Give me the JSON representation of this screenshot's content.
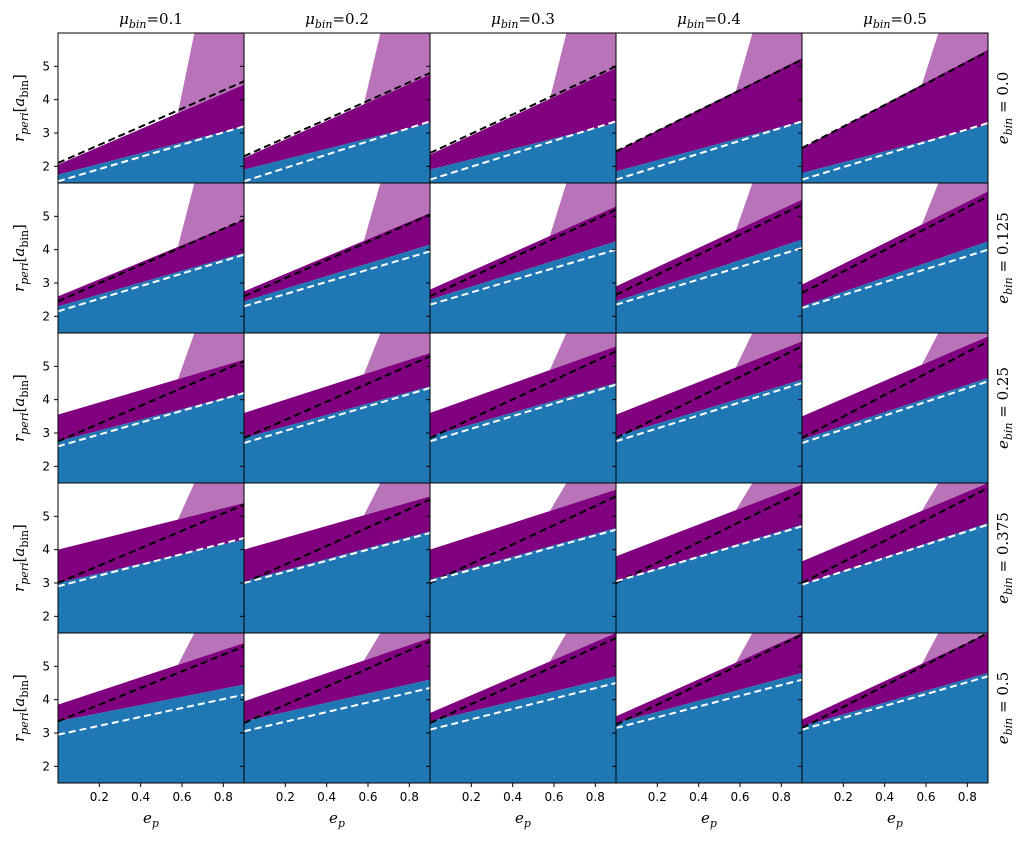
{
  "chart_data": {
    "type": "heatmap",
    "grid_shape": [
      5,
      5
    ],
    "column_labels": [
      {
        "base": "μ",
        "sub": "bin",
        "eq": "=0.1"
      },
      {
        "base": "μ",
        "sub": "bin",
        "eq": "=0.2"
      },
      {
        "base": "μ",
        "sub": "bin",
        "eq": "=0.3"
      },
      {
        "base": "μ",
        "sub": "bin",
        "eq": "=0.4"
      },
      {
        "base": "μ",
        "sub": "bin",
        "eq": "=0.5"
      }
    ],
    "row_labels": [
      {
        "base": "e",
        "sub": "bin",
        "eq": " = 0.0"
      },
      {
        "base": "e",
        "sub": "bin",
        "eq": " = 0.125"
      },
      {
        "base": "e",
        "sub": "bin",
        "eq": " = 0.25"
      },
      {
        "base": "e",
        "sub": "bin",
        "eq": " = 0.375"
      },
      {
        "base": "e",
        "sub": "bin",
        "eq": " = 0.5"
      }
    ],
    "xlabel": {
      "base": "e",
      "sub": "p"
    },
    "ylabel": {
      "base": "r",
      "sub": "peri",
      "bracket_base": "a",
      "bracket_sub": "bin"
    },
    "x_ticks": [
      "0.2",
      "0.4",
      "0.6",
      "0.8"
    ],
    "x_tick_values": [
      0.2,
      0.4,
      0.6,
      0.8
    ],
    "y_ticks": [
      "2",
      "3",
      "4",
      "5"
    ],
    "y_tick_values": [
      2,
      3,
      4,
      5
    ],
    "xlim": [
      0.0,
      0.9
    ],
    "ylim": [
      1.5,
      6.0
    ],
    "colors": {
      "unstable": "#1f77b4",
      "mixed": "#800080",
      "background": "#ffffff",
      "fit_line_1": "#000000",
      "fit_line_2": "#ffffff"
    },
    "panels": [
      [
        {
          "stable_boundary": [
            [
              0.0,
              1.75
            ],
            [
              0.9,
              3.2
            ]
          ],
          "purple_upper": [
            [
              0.0,
              2.05
            ],
            [
              0.9,
              4.45
            ]
          ],
          "black_line": [
            [
              0.0,
              2.1
            ],
            [
              0.9,
              4.55
            ]
          ],
          "white_line": [
            [
              0.0,
              1.55
            ],
            [
              0.9,
              3.2
            ]
          ]
        },
        {
          "stable_boundary": [
            [
              0.0,
              1.9
            ],
            [
              0.9,
              3.3
            ]
          ],
          "purple_upper": [
            [
              0.0,
              2.25
            ],
            [
              0.9,
              4.75
            ]
          ],
          "black_line": [
            [
              0.0,
              2.3
            ],
            [
              0.9,
              4.8
            ]
          ],
          "white_line": [
            [
              0.0,
              1.55
            ],
            [
              0.9,
              3.35
            ]
          ]
        },
        {
          "stable_boundary": [
            [
              0.0,
              1.9
            ],
            [
              0.9,
              3.3
            ]
          ],
          "purple_upper": [
            [
              0.0,
              2.35
            ],
            [
              0.9,
              4.95
            ]
          ],
          "black_line": [
            [
              0.0,
              2.4
            ],
            [
              0.9,
              5.0
            ]
          ],
          "white_line": [
            [
              0.0,
              1.6
            ],
            [
              0.9,
              3.35
            ]
          ]
        },
        {
          "stable_boundary": [
            [
              0.0,
              1.85
            ],
            [
              0.9,
              3.35
            ]
          ],
          "purple_upper": [
            [
              0.0,
              2.45
            ],
            [
              0.9,
              5.25
            ]
          ],
          "black_line": [
            [
              0.0,
              2.45
            ],
            [
              0.9,
              5.2
            ]
          ],
          "white_line": [
            [
              0.0,
              1.6
            ],
            [
              0.9,
              3.35
            ]
          ]
        },
        {
          "stable_boundary": [
            [
              0.0,
              1.8
            ],
            [
              0.9,
              3.25
            ]
          ],
          "purple_upper": [
            [
              0.0,
              2.55
            ],
            [
              0.9,
              5.5
            ]
          ],
          "black_line": [
            [
              0.0,
              2.55
            ],
            [
              0.9,
              5.45
            ]
          ],
          "white_line": [
            [
              0.0,
              1.6
            ],
            [
              0.9,
              3.3
            ]
          ]
        }
      ],
      [
        {
          "stable_boundary": [
            [
              0.0,
              2.3
            ],
            [
              0.9,
              3.9
            ]
          ],
          "purple_upper": [
            [
              0.0,
              2.6
            ],
            [
              0.9,
              4.9
            ]
          ],
          "black_line": [
            [
              0.0,
              2.45
            ],
            [
              0.9,
              4.9
            ]
          ],
          "white_line": [
            [
              0.0,
              2.15
            ],
            [
              0.9,
              3.85
            ]
          ]
        },
        {
          "stable_boundary": [
            [
              0.0,
              2.45
            ],
            [
              0.9,
              4.15
            ]
          ],
          "purple_upper": [
            [
              0.0,
              2.75
            ],
            [
              0.9,
              5.1
            ]
          ],
          "black_line": [
            [
              0.0,
              2.6
            ],
            [
              0.9,
              5.05
            ]
          ],
          "white_line": [
            [
              0.0,
              2.3
            ],
            [
              0.9,
              3.95
            ]
          ]
        },
        {
          "stable_boundary": [
            [
              0.0,
              2.5
            ],
            [
              0.9,
              4.25
            ]
          ],
          "purple_upper": [
            [
              0.0,
              2.8
            ],
            [
              0.9,
              5.3
            ]
          ],
          "black_line": [
            [
              0.0,
              2.6
            ],
            [
              0.9,
              5.2
            ]
          ],
          "white_line": [
            [
              0.0,
              2.35
            ],
            [
              0.9,
              4.0
            ]
          ]
        },
        {
          "stable_boundary": [
            [
              0.0,
              2.45
            ],
            [
              0.9,
              4.3
            ]
          ],
          "purple_upper": [
            [
              0.0,
              2.9
            ],
            [
              0.9,
              5.5
            ]
          ],
          "black_line": [
            [
              0.0,
              2.65
            ],
            [
              0.9,
              5.35
            ]
          ],
          "white_line": [
            [
              0.0,
              2.35
            ],
            [
              0.9,
              4.05
            ]
          ]
        },
        {
          "stable_boundary": [
            [
              0.0,
              2.3
            ],
            [
              0.9,
              4.25
            ]
          ],
          "purple_upper": [
            [
              0.0,
              2.95
            ],
            [
              0.9,
              5.75
            ]
          ],
          "black_line": [
            [
              0.0,
              2.7
            ],
            [
              0.9,
              5.6
            ]
          ],
          "white_line": [
            [
              0.0,
              2.25
            ],
            [
              0.9,
              4.0
            ]
          ]
        }
      ],
      [
        {
          "stable_boundary": [
            [
              0.0,
              2.75
            ],
            [
              0.9,
              4.2
            ]
          ],
          "purple_upper": [
            [
              0.0,
              3.55
            ],
            [
              0.9,
              5.2
            ]
          ],
          "black_line": [
            [
              0.0,
              2.75
            ],
            [
              0.9,
              5.15
            ]
          ],
          "white_line": [
            [
              0.0,
              2.6
            ],
            [
              0.9,
              4.2
            ]
          ]
        },
        {
          "stable_boundary": [
            [
              0.0,
              2.85
            ],
            [
              0.9,
              4.4
            ]
          ],
          "purple_upper": [
            [
              0.0,
              3.6
            ],
            [
              0.9,
              5.4
            ]
          ],
          "black_line": [
            [
              0.0,
              2.85
            ],
            [
              0.9,
              5.3
            ]
          ],
          "white_line": [
            [
              0.0,
              2.7
            ],
            [
              0.9,
              4.35
            ]
          ]
        },
        {
          "stable_boundary": [
            [
              0.0,
              2.9
            ],
            [
              0.9,
              4.5
            ]
          ],
          "purple_upper": [
            [
              0.0,
              3.6
            ],
            [
              0.9,
              5.6
            ]
          ],
          "black_line": [
            [
              0.0,
              2.85
            ],
            [
              0.9,
              5.45
            ]
          ],
          "white_line": [
            [
              0.0,
              2.75
            ],
            [
              0.9,
              4.45
            ]
          ]
        },
        {
          "stable_boundary": [
            [
              0.0,
              2.9
            ],
            [
              0.9,
              4.6
            ]
          ],
          "purple_upper": [
            [
              0.0,
              3.55
            ],
            [
              0.9,
              5.75
            ]
          ],
          "black_line": [
            [
              0.0,
              2.85
            ],
            [
              0.9,
              5.6
            ]
          ],
          "white_line": [
            [
              0.0,
              2.75
            ],
            [
              0.9,
              4.5
            ]
          ]
        },
        {
          "stable_boundary": [
            [
              0.0,
              2.8
            ],
            [
              0.9,
              4.65
            ]
          ],
          "purple_upper": [
            [
              0.0,
              3.5
            ],
            [
              0.9,
              5.9
            ]
          ],
          "black_line": [
            [
              0.0,
              2.85
            ],
            [
              0.9,
              5.75
            ]
          ],
          "white_line": [
            [
              0.0,
              2.7
            ],
            [
              0.9,
              4.55
            ]
          ]
        }
      ],
      [
        {
          "stable_boundary": [
            [
              0.0,
              3.0
            ],
            [
              0.9,
              4.3
            ]
          ],
          "purple_upper": [
            [
              0.0,
              4.0
            ],
            [
              0.9,
              5.4
            ]
          ],
          "black_line": [
            [
              0.0,
              3.0
            ],
            [
              0.9,
              5.35
            ]
          ],
          "white_line": [
            [
              0.0,
              2.9
            ],
            [
              0.9,
              4.35
            ]
          ]
        },
        {
          "stable_boundary": [
            [
              0.0,
              3.05
            ],
            [
              0.9,
              4.55
            ]
          ],
          "purple_upper": [
            [
              0.0,
              4.0
            ],
            [
              0.9,
              5.6
            ]
          ],
          "black_line": [
            [
              0.0,
              3.0
            ],
            [
              0.9,
              5.5
            ]
          ],
          "white_line": [
            [
              0.0,
              3.0
            ],
            [
              0.9,
              4.5
            ]
          ]
        },
        {
          "stable_boundary": [
            [
              0.0,
              3.1
            ],
            [
              0.9,
              4.65
            ]
          ],
          "purple_upper": [
            [
              0.0,
              4.0
            ],
            [
              0.9,
              5.8
            ]
          ],
          "black_line": [
            [
              0.0,
              3.0
            ],
            [
              0.9,
              5.6
            ]
          ],
          "white_line": [
            [
              0.0,
              3.05
            ],
            [
              0.9,
              4.6
            ]
          ]
        },
        {
          "stable_boundary": [
            [
              0.0,
              3.05
            ],
            [
              0.9,
              4.75
            ]
          ],
          "purple_upper": [
            [
              0.0,
              3.8
            ],
            [
              0.9,
              5.95
            ]
          ],
          "black_line": [
            [
              0.0,
              3.0
            ],
            [
              0.9,
              5.75
            ]
          ],
          "white_line": [
            [
              0.0,
              3.05
            ],
            [
              0.9,
              4.7
            ]
          ]
        },
        {
          "stable_boundary": [
            [
              0.0,
              2.95
            ],
            [
              0.9,
              4.8
            ]
          ],
          "purple_upper": [
            [
              0.0,
              3.65
            ],
            [
              0.9,
              6.0
            ]
          ],
          "black_line": [
            [
              0.0,
              3.0
            ],
            [
              0.9,
              5.85
            ]
          ],
          "white_line": [
            [
              0.0,
              2.95
            ],
            [
              0.9,
              4.75
            ]
          ]
        }
      ],
      [
        {
          "stable_boundary": [
            [
              0.0,
              3.35
            ],
            [
              0.9,
              4.45
            ]
          ],
          "purple_upper": [
            [
              0.0,
              3.85
            ],
            [
              0.9,
              5.7
            ]
          ],
          "black_line": [
            [
              0.0,
              3.35
            ],
            [
              0.9,
              5.6
            ]
          ],
          "white_line": [
            [
              0.0,
              2.95
            ],
            [
              0.9,
              4.15
            ]
          ]
        },
        {
          "stable_boundary": [
            [
              0.0,
              3.35
            ],
            [
              0.9,
              4.6
            ]
          ],
          "purple_upper": [
            [
              0.0,
              3.95
            ],
            [
              0.9,
              5.85
            ]
          ],
          "black_line": [
            [
              0.0,
              3.3
            ],
            [
              0.9,
              5.75
            ]
          ],
          "white_line": [
            [
              0.0,
              3.05
            ],
            [
              0.9,
              4.35
            ]
          ]
        },
        {
          "stable_boundary": [
            [
              0.0,
              3.35
            ],
            [
              0.9,
              4.7
            ]
          ],
          "purple_upper": [
            [
              0.0,
              3.6
            ],
            [
              0.9,
              6.0
            ]
          ],
          "black_line": [
            [
              0.0,
              3.3
            ],
            [
              0.9,
              5.85
            ]
          ],
          "white_line": [
            [
              0.0,
              3.1
            ],
            [
              0.9,
              4.5
            ]
          ]
        },
        {
          "stable_boundary": [
            [
              0.0,
              3.3
            ],
            [
              0.9,
              4.8
            ]
          ],
          "purple_upper": [
            [
              0.0,
              3.5
            ],
            [
              0.9,
              6.0
            ]
          ],
          "black_line": [
            [
              0.0,
              3.25
            ],
            [
              0.9,
              5.95
            ]
          ],
          "white_line": [
            [
              0.0,
              3.15
            ],
            [
              0.9,
              4.6
            ]
          ]
        },
        {
          "stable_boundary": [
            [
              0.0,
              3.2
            ],
            [
              0.9,
              4.8
            ]
          ],
          "purple_upper": [
            [
              0.0,
              3.4
            ],
            [
              0.9,
              6.0
            ]
          ],
          "black_line": [
            [
              0.0,
              3.15
            ],
            [
              0.9,
              6.0
            ]
          ],
          "white_line": [
            [
              0.0,
              3.1
            ],
            [
              0.9,
              4.7
            ]
          ]
        }
      ]
    ]
  }
}
